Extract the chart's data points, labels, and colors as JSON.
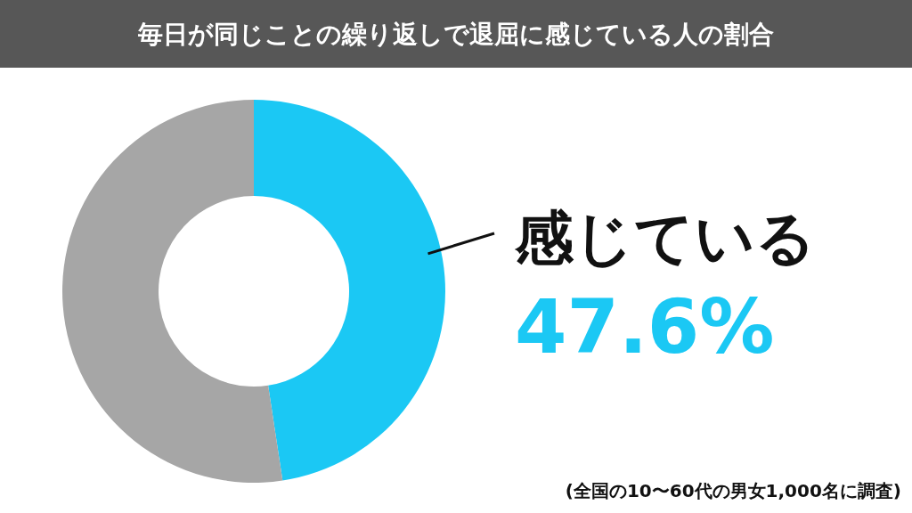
{
  "chart_data": {
    "type": "donut",
    "title": "毎日が同じことの繰り返しで退屈に感じている人の割合",
    "categories": [
      "感じている",
      null
    ],
    "values": [
      47.6,
      52.4
    ],
    "colors": [
      "#1bc8f4",
      "#a6a6a6"
    ],
    "value_labels": [
      "47.6%",
      null
    ],
    "annotations": [
      "(全国の10〜60代の男女1,000名に調査)"
    ]
  }
}
